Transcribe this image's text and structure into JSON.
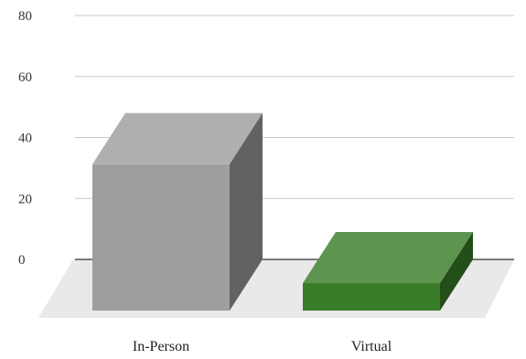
{
  "chart_data": {
    "type": "bar",
    "style": "3d",
    "title": "",
    "xlabel": "",
    "ylabel": "",
    "ylim": [
      0,
      80
    ],
    "yticks": [
      0,
      20,
      40,
      60,
      80
    ],
    "ytick_labels": [
      "0",
      "20",
      "40",
      "60",
      "80"
    ],
    "grid": true,
    "categories": [
      "In-Person",
      "Virtual"
    ],
    "values": [
      48,
      9
    ],
    "colors": [
      "#9e9e9e",
      "#3a7d28"
    ]
  }
}
